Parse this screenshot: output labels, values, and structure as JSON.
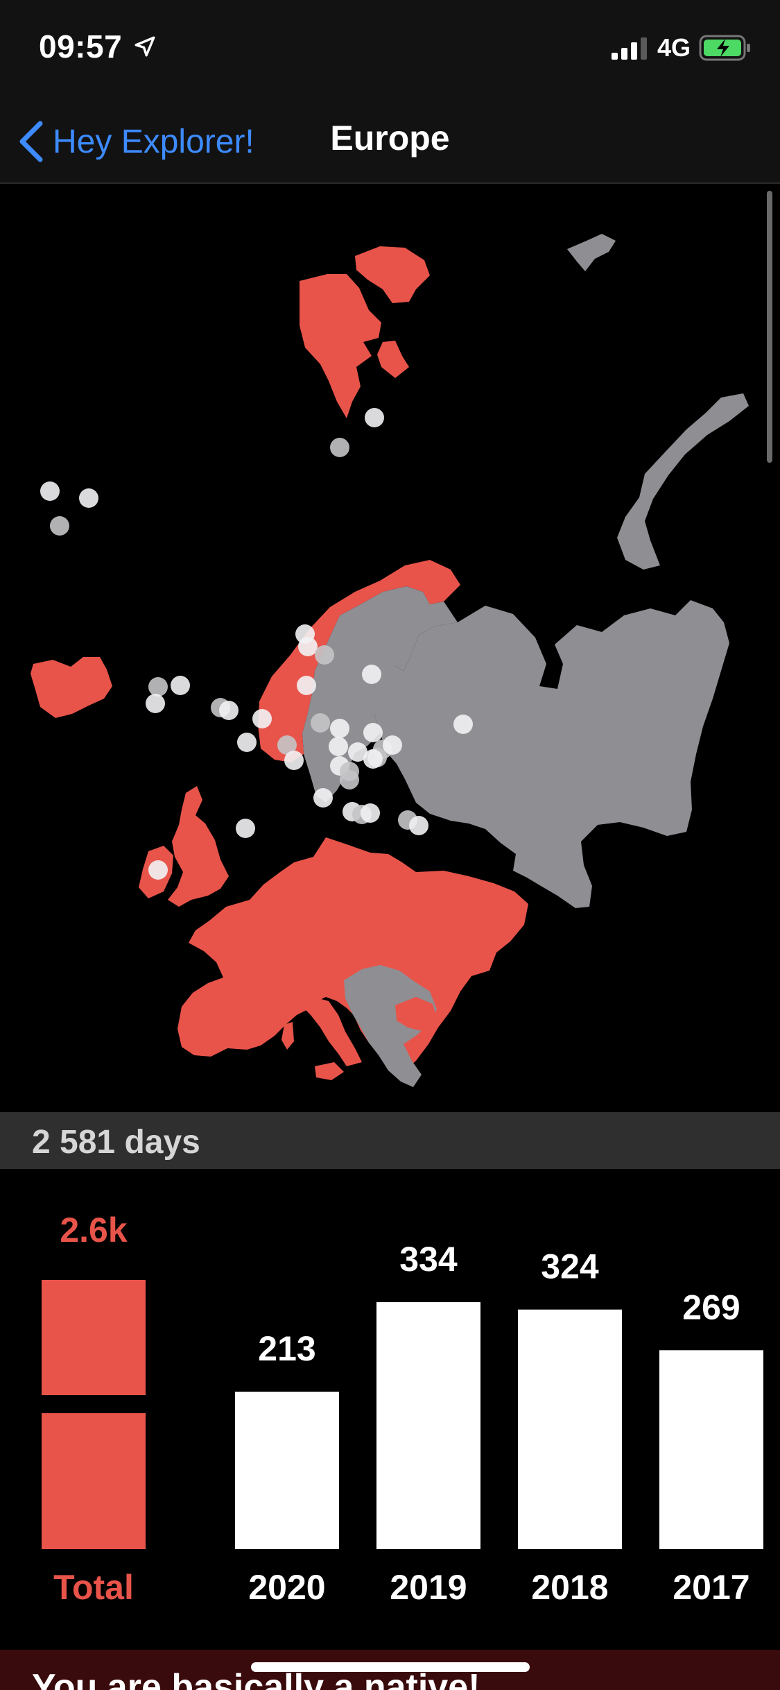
{
  "status": {
    "time": "09:57",
    "network": "4G"
  },
  "nav": {
    "back_label": "Hey Explorer!",
    "title": "Europe"
  },
  "summary": {
    "days": "2 581 days"
  },
  "colors": {
    "visited": "#e8544a",
    "unvisited": "#8e8e93",
    "accent": "#3d8bff",
    "bar": "#ffffff"
  },
  "chart_data": {
    "type": "bar",
    "total": {
      "label": "Total",
      "value_label": "2.6k"
    },
    "categories": [
      "2020",
      "2019",
      "2018",
      "2017"
    ],
    "values": [
      213,
      334,
      324,
      269
    ]
  },
  "banner": {
    "text": "You are basically a native!"
  }
}
